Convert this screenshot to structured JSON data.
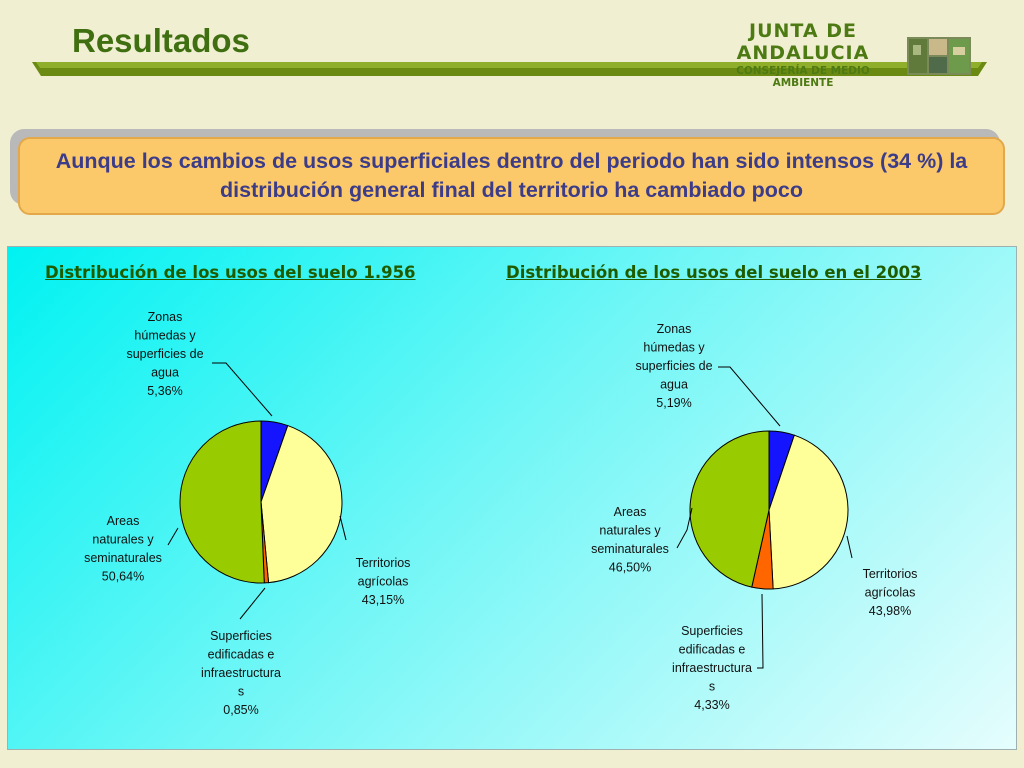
{
  "header": {
    "title": "Resultados",
    "org_name": "JUNTA DE ANDALUCIA",
    "org_sub": "CONSEJERÍA DE MEDIO AMBIENTE"
  },
  "callout": {
    "text": "Aunque los cambios de usos superficiales dentro del periodo han sido intensos (34 %) la distribución general final del territorio ha cambiado poco"
  },
  "colors": {
    "water": "#1414ff",
    "agricultural": "#ffff99",
    "built": "#ff6600",
    "natural": "#99cc00",
    "title_green": "#3f6f10",
    "callout_bg": "#fcc96a",
    "callout_text": "#3c3c88"
  },
  "chart_data": [
    {
      "type": "pie",
      "title": "Distribución de los usos del suelo 1.956",
      "labels": [
        [
          "Zonas",
          "húmedas y",
          "superficies de",
          "agua",
          "5,36%"
        ],
        [
          "Territorios",
          "agrícolas",
          "43,15%"
        ],
        [
          "Superficies",
          "edificadas e",
          "infraestructura",
          "s",
          "0,85%"
        ],
        [
          "Areas",
          "naturales y",
          "seminaturales",
          "50,64%"
        ]
      ],
      "categories": [
        "Zonas húmedas y superficies de agua",
        "Territorios agrícolas",
        "Superficies edificadas e infraestructuras",
        "Areas naturales y seminaturales"
      ],
      "values": [
        5.36,
        43.15,
        0.85,
        50.64
      ]
    },
    {
      "type": "pie",
      "title": "Distribución de los usos del suelo en el 2003",
      "labels": [
        [
          "Zonas",
          "húmedas y",
          "superficies de",
          "agua",
          "5,19%"
        ],
        [
          "Territorios",
          "agrícolas",
          "43,98%"
        ],
        [
          "Superficies",
          "edificadas e",
          "infraestructura",
          "s",
          "4,33%"
        ],
        [
          "Areas",
          "naturales y",
          "seminaturales",
          "46,50%"
        ]
      ],
      "categories": [
        "Zonas húmedas y superficies de agua",
        "Territorios agrícolas",
        "Superficies edificadas e infraestructuras",
        "Areas naturales y seminaturales"
      ],
      "values": [
        5.19,
        43.98,
        4.33,
        46.5
      ]
    }
  ]
}
